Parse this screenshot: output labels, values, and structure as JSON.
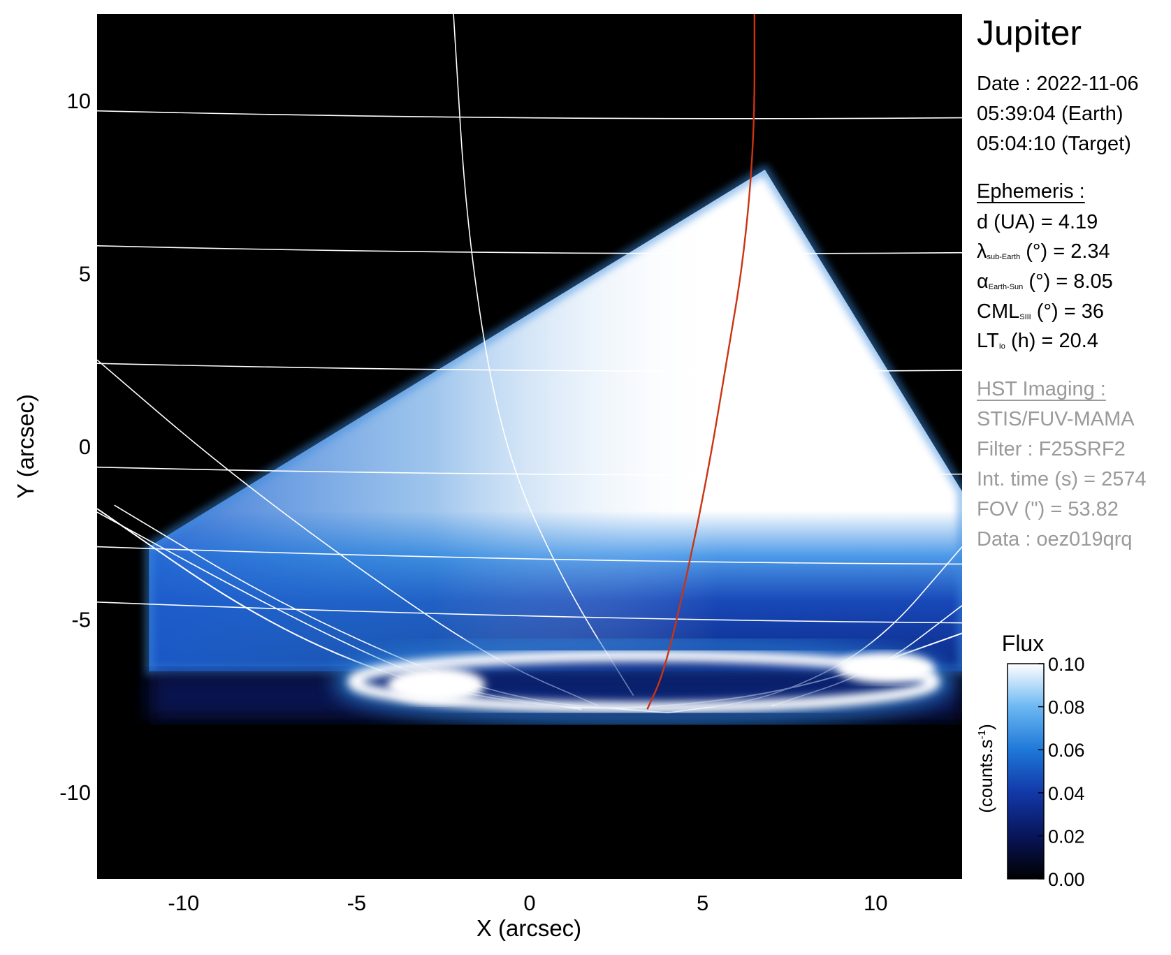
{
  "chart_data": {
    "type": "heatmap",
    "title": "Jupiter",
    "xlabel": "X (arcsec)",
    "ylabel": "Y (arcsec)",
    "xlim": [
      -12.5,
      12.5
    ],
    "ylim": [
      -12.5,
      12.5
    ],
    "xticks": [
      -10,
      -5,
      0,
      5,
      10
    ],
    "yticks": [
      10,
      5,
      0,
      -5,
      -10
    ],
    "colorbar": {
      "title": "Flux",
      "label": "(counts.s",
      "label_sup": "-1",
      "label_end": ")",
      "ticks": [
        "0.10",
        "0.08",
        "0.06",
        "0.04",
        "0.02",
        "0.00"
      ],
      "range": [
        0.0,
        0.1
      ]
    },
    "colors": {
      "background": "#000000",
      "grid": "#ffffff",
      "meridian": "#cc3311",
      "emission_high": "#ffffff",
      "emission_mid": "#2a7fd6",
      "emission_low": "#0a1f6e"
    },
    "detector_wedge_vertices": [
      [
        -11,
        -2.9
      ],
      [
        6.8,
        8
      ],
      [
        12.5,
        -1.3
      ],
      [
        12.5,
        -6.5
      ],
      [
        -11,
        -6.5
      ]
    ],
    "auroral_oval": {
      "center": [
        3.3,
        -6.8
      ],
      "half_width": 8.4,
      "half_height": 0.75
    },
    "limb_parabola": {
      "x": [
        -12.5,
        -8,
        -4,
        0,
        3.5,
        8,
        12.5
      ],
      "y": [
        -1.8,
        -4.9,
        -6.7,
        -7.5,
        -7.6,
        -7.0,
        -5.4
      ]
    },
    "latitude_circles_y_at_left_edge": [
      9.7,
      5.8,
      2.4,
      -0.6,
      -2.9,
      -4.5
    ],
    "latitude_circles_y_at_right_edge": [
      9.5,
      5.6,
      2.2,
      -0.8,
      -3.4,
      -5.1
    ],
    "red_meridian": {
      "x": [
        6.5,
        6.5,
        6.2,
        5.7,
        5.2,
        4.6,
        3.9,
        3.4
      ],
      "y": [
        12.5,
        9,
        5.5,
        2.5,
        -0.5,
        -3.5,
        -6.5,
        -7.6
      ]
    }
  },
  "info": {
    "planet": "Jupiter",
    "date_line": "Date : 2022-11-06",
    "earth_time": "05:39:04 (Earth)",
    "target_time": "05:04:10 (Target)",
    "ephemeris_header": "Ephemeris :",
    "d": "d (UA)    = 4.19",
    "lambda_sym": "λ",
    "lambda_sub": "sub-Earth",
    "lambda_val": " (°) = 2.34",
    "alpha_sym": "α",
    "alpha_sub": "Earth-Sun",
    "alpha_val": " (°) = 8.05",
    "cml_sym": "CML",
    "cml_sub": "SIII",
    "cml_val": " (°) = 36",
    "lt_sym": "LT",
    "lt_sub": "Io",
    "lt_val": " (h) = 20.4",
    "hst_header": "HST Imaging :",
    "instrument": "STIS/FUV-MAMA",
    "filter": "Filter : F25SRF2",
    "int_time": "Int. time (s) = 2574",
    "fov": "FOV (\") = 53.82",
    "data_id": "Data : oez019qrq"
  }
}
